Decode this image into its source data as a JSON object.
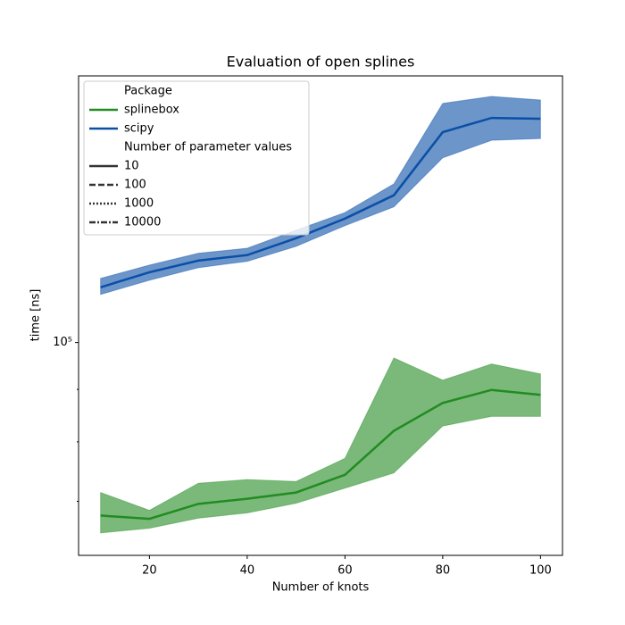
{
  "chart_data": {
    "type": "line",
    "title": "Evaluation of open splines",
    "xlabel": "Number of knots",
    "ylabel": "time [ns]",
    "log_y": true,
    "x": [
      10,
      20,
      30,
      40,
      50,
      60,
      70,
      80,
      90,
      100
    ],
    "xlim": [
      5.5,
      104.5
    ],
    "xticks": [
      20,
      40,
      60,
      80,
      100
    ],
    "ylim": [
      62000,
      182000
    ],
    "yticks": [
      {
        "value": 100000,
        "label": "10⁵"
      }
    ],
    "yticks_minor": [
      70000,
      80000,
      90000
    ],
    "series": [
      {
        "name": "splinebox",
        "color": "#228b22",
        "values": [
          67800,
          67300,
          69600,
          70400,
          71400,
          74300,
          82000,
          87300,
          89900,
          88900
        ],
        "upper": [
          71400,
          68600,
          72900,
          73500,
          73200,
          77100,
          96600,
          91900,
          95300,
          93200
        ],
        "lower": [
          65200,
          65900,
          67400,
          68200,
          69700,
          72100,
          74600,
          82900,
          84700,
          84700
        ]
      },
      {
        "name": "scipy",
        "color": "#0a4fa6",
        "values": [
          113200,
          117100,
          120200,
          121700,
          126400,
          132100,
          139200,
          160400,
          165600,
          165300
        ],
        "upper": [
          115500,
          119000,
          122200,
          123600,
          128700,
          133900,
          142800,
          171100,
          173800,
          172400
        ],
        "lower": [
          111400,
          115000,
          118300,
          120000,
          124100,
          130000,
          135600,
          151400,
          157500,
          158100
        ]
      }
    ],
    "legend_titles": [
      "Package",
      "Number of parameter values"
    ],
    "styles": [
      {
        "name": "10",
        "dash": "solid"
      },
      {
        "name": "100",
        "dash": "dashed"
      },
      {
        "name": "1000",
        "dash": "dotted"
      },
      {
        "name": "10000",
        "dash": "dashdot"
      }
    ],
    "legend_position": "upper left"
  }
}
